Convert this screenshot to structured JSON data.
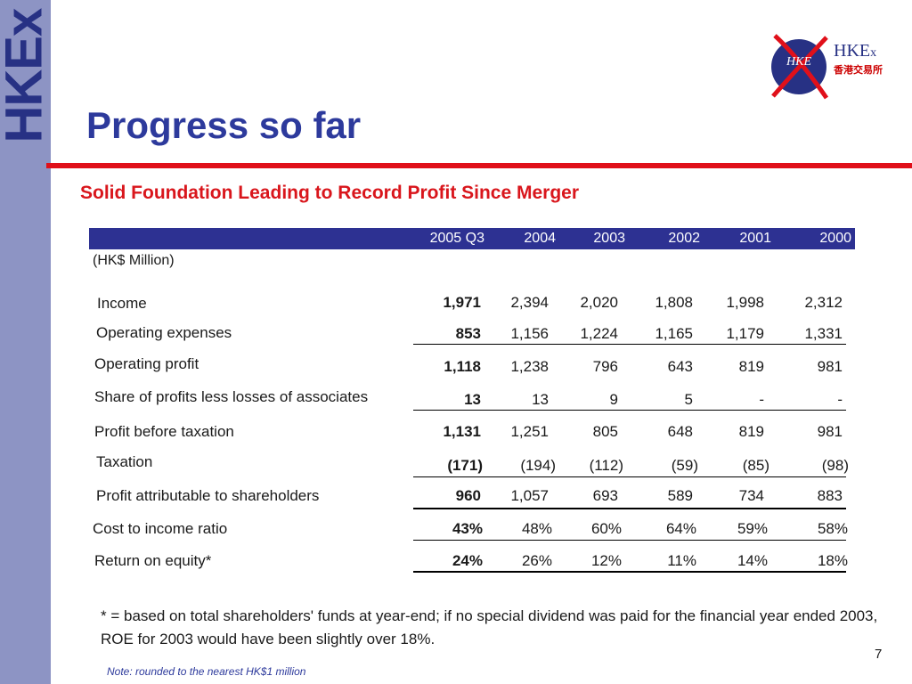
{
  "brand": {
    "side_text": "HKEx",
    "logo_hke": "HKE",
    "logo_name_main": "HKE",
    "logo_name_x": "x",
    "logo_chinese": "香港交易所"
  },
  "title": "Progress so far",
  "subtitle": "Solid Foundation Leading to Record Profit Since Merger",
  "table": {
    "unit": "(HK$ Million)",
    "columns": [
      "2005 Q3",
      "2004",
      "2003",
      "2002",
      "2001",
      "2000"
    ],
    "rows": [
      {
        "label": "Income",
        "values": [
          "1,971",
          "2,394",
          "2,020",
          "1,808",
          "1,998",
          "2,312"
        ]
      },
      {
        "label": "Operating expenses",
        "values": [
          "853",
          "1,156",
          "1,224",
          "1,165",
          "1,179",
          "1,331"
        ]
      },
      {
        "label": "Operating profit",
        "values": [
          "1,118",
          "1,238",
          "796",
          "643",
          "819",
          "981"
        ]
      },
      {
        "label": "Share of profits less losses of associates",
        "values": [
          "13",
          "13",
          "9",
          "5",
          "-",
          "-"
        ]
      },
      {
        "label": "Profit before taxation",
        "values": [
          "1,131",
          "1,251",
          "805",
          "648",
          "819",
          "981"
        ]
      },
      {
        "label": "Taxation",
        "values": [
          "(171)",
          "(194)",
          "(112)",
          "(59)",
          "(85)",
          "(98)"
        ]
      },
      {
        "label": "Profit attributable to shareholders",
        "values": [
          "960",
          "1,057",
          "693",
          "589",
          "734",
          "883"
        ]
      },
      {
        "label": "Cost to income ratio",
        "values": [
          "43%",
          "48%",
          "60%",
          "64%",
          "59%",
          "58%"
        ]
      },
      {
        "label": "Return on equity*",
        "values": [
          "24%",
          "26%",
          "12%",
          "11%",
          "14%",
          "18%"
        ]
      }
    ]
  },
  "footnote": "* = based on total shareholders' funds at year-end; if no special dividend was paid for the financial year ended 2003, ROE for 2003 would have been slightly over 18%.",
  "page_number": "7",
  "note": "Note: rounded to the nearest HK$1 million"
}
